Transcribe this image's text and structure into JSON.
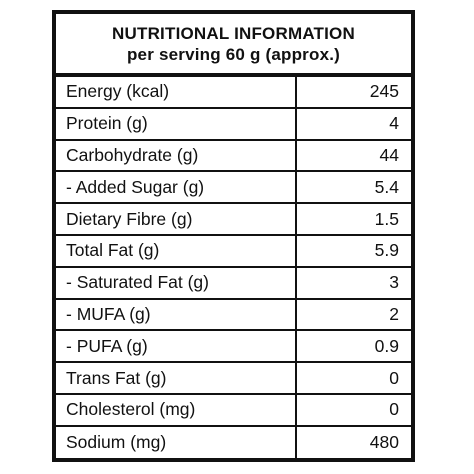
{
  "header": {
    "title": "NUTRITIONAL INFORMATION",
    "subtitle": "per serving 60 g (approx.)"
  },
  "rows": [
    {
      "name": "Energy (kcal)",
      "value": "245"
    },
    {
      "name": "Protein (g)",
      "value": "4"
    },
    {
      "name": "Carbohydrate (g)",
      "value": "44"
    },
    {
      "name": "- Added Sugar (g)",
      "value": "5.4"
    },
    {
      "name": "Dietary Fibre (g)",
      "value": "1.5"
    },
    {
      "name": "Total Fat (g)",
      "value": "5.9"
    },
    {
      "name": "- Saturated Fat (g)",
      "value": "3"
    },
    {
      "name": "- MUFA (g)",
      "value": "2"
    },
    {
      "name": "- PUFA (g)",
      "value": "0.9"
    },
    {
      "name": "Trans Fat (g)",
      "value": "0"
    },
    {
      "name": "Cholesterol (mg)",
      "value": "0"
    },
    {
      "name": "Sodium (mg)",
      "value": "480"
    }
  ]
}
